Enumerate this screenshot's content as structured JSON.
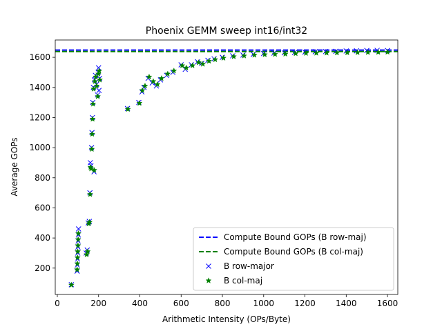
{
  "chart_data": {
    "type": "scatter",
    "title": "Phoenix GEMM sweep int16/int32",
    "xlabel": "Arithmetic Intensity (OPs/Byte)",
    "ylabel": "Average GOPs",
    "xlim": [
      -10,
      1650
    ],
    "ylim": [
      25,
      1715
    ],
    "xticks": [
      0,
      200,
      400,
      600,
      800,
      1000,
      1200,
      1400,
      1600
    ],
    "yticks": [
      200,
      400,
      600,
      800,
      1000,
      1200,
      1400,
      1600
    ],
    "legend_position": "lower-right",
    "hlines": [
      {
        "name": "Compute Bound GOPs (B row-maj)",
        "y": 1648,
        "color": "#0000ff",
        "style": "dashed"
      },
      {
        "name": "Compute Bound GOPs (B col-maj)",
        "y": 1638,
        "color": "#008000",
        "style": "dashed"
      }
    ],
    "series": [
      {
        "name": "B row-major",
        "marker": "x",
        "color": "#0000ff",
        "points": [
          [
            68,
            90
          ],
          [
            96,
            180
          ],
          [
            97,
            220
          ],
          [
            98,
            260
          ],
          [
            99,
            300
          ],
          [
            100,
            340
          ],
          [
            101,
            380
          ],
          [
            102,
            420
          ],
          [
            103,
            460
          ],
          [
            140,
            300
          ],
          [
            145,
            320
          ],
          [
            150,
            500
          ],
          [
            155,
            510
          ],
          [
            158,
            700
          ],
          [
            160,
            900
          ],
          [
            163,
            880
          ],
          [
            166,
            1000
          ],
          [
            168,
            1100
          ],
          [
            170,
            1200
          ],
          [
            172,
            1300
          ],
          [
            175,
            1400
          ],
          [
            178,
            840
          ],
          [
            180,
            1450
          ],
          [
            185,
            1480
          ],
          [
            190,
            1420
          ],
          [
            195,
            1350
          ],
          [
            198,
            1500
          ],
          [
            200,
            1530
          ],
          [
            202,
            1380
          ],
          [
            205,
            1460
          ],
          [
            340,
            1260
          ],
          [
            395,
            1300
          ],
          [
            410,
            1370
          ],
          [
            420,
            1400
          ],
          [
            440,
            1460
          ],
          [
            460,
            1430
          ],
          [
            480,
            1410
          ],
          [
            500,
            1450
          ],
          [
            530,
            1480
          ],
          [
            560,
            1500
          ],
          [
            600,
            1550
          ],
          [
            620,
            1520
          ],
          [
            650,
            1550
          ],
          [
            680,
            1570
          ],
          [
            700,
            1560
          ],
          [
            730,
            1580
          ],
          [
            760,
            1590
          ],
          [
            800,
            1600
          ],
          [
            850,
            1610
          ],
          [
            900,
            1615
          ],
          [
            950,
            1620
          ],
          [
            1000,
            1625
          ],
          [
            1050,
            1628
          ],
          [
            1100,
            1630
          ],
          [
            1150,
            1632
          ],
          [
            1200,
            1635
          ],
          [
            1250,
            1637
          ],
          [
            1300,
            1638
          ],
          [
            1350,
            1640
          ],
          [
            1400,
            1642
          ],
          [
            1450,
            1643
          ],
          [
            1500,
            1645
          ],
          [
            1550,
            1646
          ],
          [
            1600,
            1645
          ]
        ]
      },
      {
        "name": "B col-maj",
        "marker": "*",
        "color": "#008000",
        "points": [
          [
            68,
            88
          ],
          [
            96,
            190
          ],
          [
            97,
            230
          ],
          [
            98,
            270
          ],
          [
            99,
            310
          ],
          [
            100,
            350
          ],
          [
            101,
            390
          ],
          [
            102,
            430
          ],
          [
            142,
            290
          ],
          [
            147,
            310
          ],
          [
            152,
            495
          ],
          [
            156,
            505
          ],
          [
            159,
            690
          ],
          [
            161,
            870
          ],
          [
            164,
            860
          ],
          [
            167,
            990
          ],
          [
            169,
            1090
          ],
          [
            171,
            1190
          ],
          [
            173,
            1290
          ],
          [
            176,
            1390
          ],
          [
            179,
            850
          ],
          [
            182,
            1440
          ],
          [
            186,
            1470
          ],
          [
            191,
            1410
          ],
          [
            196,
            1340
          ],
          [
            199,
            1490
          ],
          [
            203,
            1510
          ],
          [
            206,
            1450
          ],
          [
            342,
            1255
          ],
          [
            398,
            1295
          ],
          [
            412,
            1380
          ],
          [
            425,
            1410
          ],
          [
            445,
            1470
          ],
          [
            465,
            1440
          ],
          [
            485,
            1420
          ],
          [
            505,
            1460
          ],
          [
            535,
            1490
          ],
          [
            565,
            1510
          ],
          [
            605,
            1545
          ],
          [
            625,
            1530
          ],
          [
            655,
            1545
          ],
          [
            685,
            1565
          ],
          [
            705,
            1555
          ],
          [
            735,
            1575
          ],
          [
            765,
            1585
          ],
          [
            805,
            1595
          ],
          [
            855,
            1605
          ],
          [
            905,
            1610
          ],
          [
            955,
            1615
          ],
          [
            1005,
            1618
          ],
          [
            1055,
            1620
          ],
          [
            1105,
            1622
          ],
          [
            1155,
            1625
          ],
          [
            1205,
            1627
          ],
          [
            1255,
            1628
          ],
          [
            1305,
            1629
          ],
          [
            1355,
            1630
          ],
          [
            1405,
            1631
          ],
          [
            1455,
            1632
          ],
          [
            1505,
            1633
          ],
          [
            1555,
            1634
          ],
          [
            1600,
            1635
          ]
        ]
      }
    ]
  }
}
